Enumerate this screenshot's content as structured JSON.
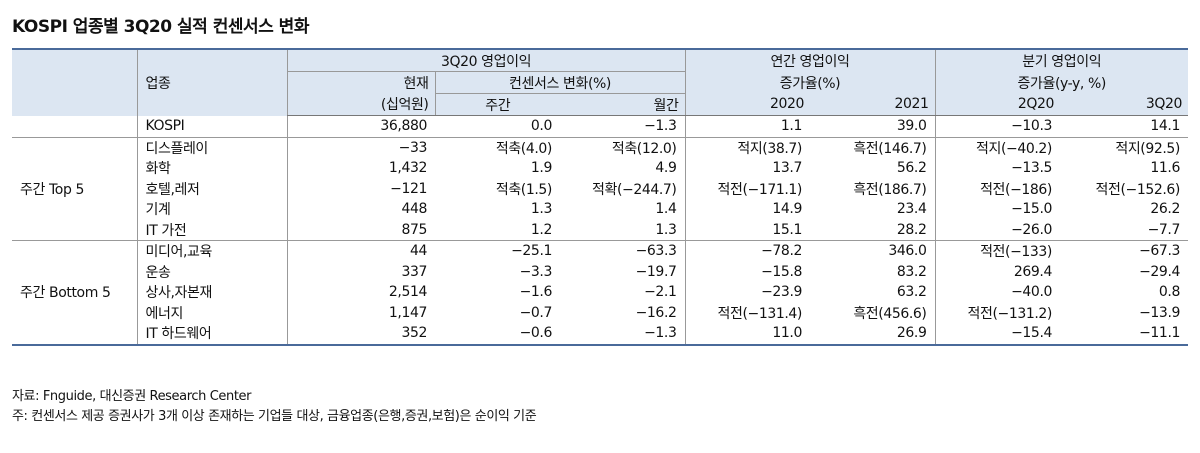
{
  "title": "KOSPI 업종별 3Q20 실적 컨센서스 변화",
  "header": {
    "sector": "업종",
    "op_profit": "3Q20 영업이익",
    "current": "현재",
    "current_unit": "(십억원)",
    "consensus": "컨센서스 변화(%)",
    "weekly": "주간",
    "monthly": "월간",
    "annual_1": "연간 영업이익",
    "annual_2": "증가율(%)",
    "y2020": "2020",
    "y2021": "2021",
    "quarter_1": "분기 영업이익",
    "quarter_2": "증가율(y-y, %)",
    "q2": "2Q20",
    "q3": "3Q20"
  },
  "kospi": {
    "sector": "KOSPI",
    "values": [
      "36,880",
      "0.0",
      "−1.3",
      "1.1",
      "39.0",
      "−10.3",
      "14.1"
    ]
  },
  "groups": [
    {
      "name": "주간 Top 5",
      "rows": [
        {
          "sector": "디스플레이",
          "values": [
            "−33",
            "적축(4.0)",
            "적축(12.0)",
            "적지(38.7)",
            "흑전(146.7)",
            "적지(−40.2)",
            "적지(92.5)"
          ]
        },
        {
          "sector": "화학",
          "values": [
            "1,432",
            "1.9",
            "4.9",
            "13.7",
            "56.2",
            "−13.5",
            "11.6"
          ]
        },
        {
          "sector": "호텔,레저",
          "values": [
            "−121",
            "적축(1.5)",
            "적확(−244.7)",
            "적전(−171.1)",
            "흑전(186.7)",
            "적전(−186)",
            "적전(−152.6)"
          ]
        },
        {
          "sector": "기계",
          "values": [
            "448",
            "1.3",
            "1.4",
            "14.9",
            "23.4",
            "−15.0",
            "26.2"
          ]
        },
        {
          "sector": "IT 가전",
          "values": [
            "875",
            "1.2",
            "1.3",
            "15.1",
            "28.2",
            "−26.0",
            "−7.7"
          ]
        }
      ]
    },
    {
      "name": "주간 Bottom 5",
      "rows": [
        {
          "sector": "미디어,교육",
          "values": [
            "44",
            "−25.1",
            "−63.3",
            "−78.2",
            "346.0",
            "적전(−133)",
            "−67.3"
          ]
        },
        {
          "sector": "운송",
          "values": [
            "337",
            "−3.3",
            "−19.7",
            "−15.8",
            "83.2",
            "269.4",
            "−29.4"
          ]
        },
        {
          "sector": "상사,자본재",
          "values": [
            "2,514",
            "−1.6",
            "−2.1",
            "−23.9",
            "63.2",
            "−40.0",
            "0.8"
          ]
        },
        {
          "sector": "에너지",
          "values": [
            "1,147",
            "−0.7",
            "−16.2",
            "적전(−131.4)",
            "흑전(456.6)",
            "적전(−131.2)",
            "−13.9"
          ]
        },
        {
          "sector": "IT 하드웨어",
          "values": [
            "352",
            "−0.6",
            "−1.3",
            "11.0",
            "26.9",
            "−15.4",
            "−11.1"
          ]
        }
      ]
    }
  ],
  "notes": [
    "자료: Fnguide, 대신증권 Research Center",
    "주: 컨센서스 제공 증권사가 3개 이상 존재하는 기업들 대상, 금융업종(은행,증권,보험)은 순이익 기준"
  ]
}
